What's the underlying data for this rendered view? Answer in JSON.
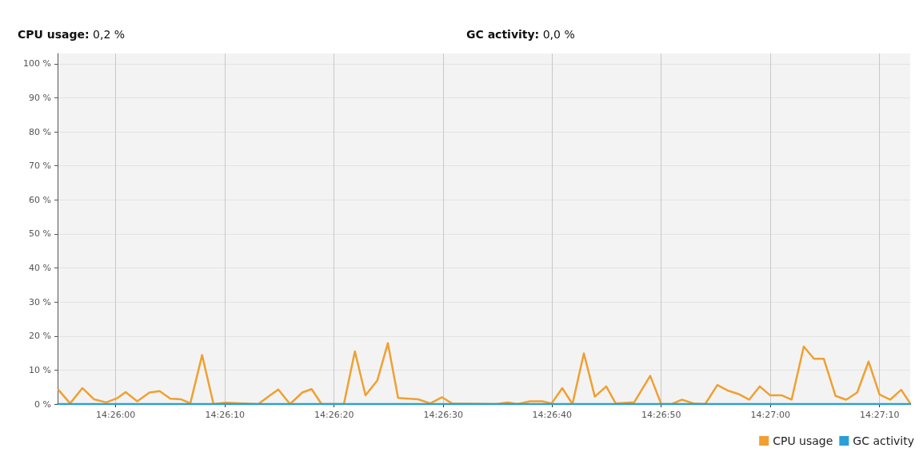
{
  "chart_data": {
    "type": "line",
    "annotations": [
      "CPU usage: 0,2 %",
      "GC activity: 0,0 %"
    ],
    "xlim": [
      14.43185,
      14.45356
    ],
    "xticks": [
      {
        "value": 14.43333,
        "label": "14:26:00"
      },
      {
        "value": 14.43611,
        "label": "14:26:10"
      },
      {
        "value": 14.43889,
        "label": "14:26:20"
      },
      {
        "value": 14.44167,
        "label": "14:26:30"
      },
      {
        "value": 14.44444,
        "label": "14:26:40"
      },
      {
        "value": 14.44722,
        "label": "14:26:50"
      },
      {
        "value": 14.45,
        "label": "14:27:00"
      },
      {
        "value": 14.45278,
        "label": "14:27:10"
      }
    ],
    "ylim": [
      0,
      103
    ],
    "yticks": [
      {
        "value": 0,
        "label": "0 %"
      },
      {
        "value": 10,
        "label": "10 %"
      },
      {
        "value": 20,
        "label": "20 %"
      },
      {
        "value": 30,
        "label": "30 %"
      },
      {
        "value": 40,
        "label": "40 %"
      },
      {
        "value": 50,
        "label": "50 %"
      },
      {
        "value": 60,
        "label": "60 %"
      },
      {
        "value": 70,
        "label": "70 %"
      },
      {
        "value": 80,
        "label": "80 %"
      },
      {
        "value": 90,
        "label": "90 %"
      },
      {
        "value": 100,
        "label": "100 %"
      }
    ],
    "grid": true,
    "legend": "bottom right",
    "marker": "none",
    "line_style": "solid",
    "series": [
      {
        "name": "CPU usage",
        "color": "#f0a030",
        "x": [
          14.43187,
          14.43217,
          14.43248,
          14.43278,
          14.43309,
          14.43338,
          14.43358,
          14.43388,
          14.43419,
          14.43445,
          14.43472,
          14.435,
          14.43523,
          14.43553,
          14.43582,
          14.43612,
          14.43696,
          14.43724,
          14.43747,
          14.43777,
          14.43808,
          14.43832,
          14.43857,
          14.43914,
          14.43942,
          14.43969,
          14.43999,
          14.44026,
          14.44052,
          14.44103,
          14.44134,
          14.44164,
          14.44189,
          14.44301,
          14.44331,
          14.44356,
          14.44388,
          14.44419,
          14.44443,
          14.4447,
          14.44496,
          14.44525,
          14.44553,
          14.44582,
          14.44606,
          14.44653,
          14.44694,
          14.44722,
          14.44749,
          14.44775,
          14.44804,
          14.44834,
          14.44865,
          14.44891,
          14.44918,
          14.44946,
          14.44973,
          14.44999,
          14.45028,
          14.45054,
          14.45085,
          14.45111,
          14.45136,
          14.45166,
          14.45193,
          14.45221,
          14.4525,
          14.45278,
          14.45305,
          14.45333,
          14.45356
        ],
        "values": [
          4.2,
          0.2,
          4.7,
          1.4,
          0.5,
          1.8,
          3.5,
          0.8,
          3.4,
          3.8,
          1.6,
          1.4,
          0.2,
          14.4,
          0,
          0.4,
          0,
          2.4,
          4.3,
          0,
          3.4,
          4.4,
          0,
          0,
          15.5,
          2.6,
          6.9,
          17.9,
          1.8,
          1.4,
          0.2,
          2,
          0.2,
          0,
          0.5,
          0,
          0.8,
          0.8,
          0.2,
          4.7,
          0,
          14.9,
          2.2,
          5.2,
          0.2,
          0.5,
          8.3,
          0,
          0,
          1.3,
          0.2,
          0,
          5.6,
          4,
          3,
          1.3,
          5.2,
          2.6,
          2.6,
          1.3,
          16.9,
          13.3,
          13.3,
          2.4,
          1.3,
          3.4,
          12.5,
          2.8,
          1.3,
          4.2,
          0.2
        ]
      },
      {
        "name": "GC activity",
        "color": "#2a9fd6",
        "x": [
          14.43187,
          14.45356
        ],
        "values": [
          0,
          0
        ]
      }
    ]
  }
}
